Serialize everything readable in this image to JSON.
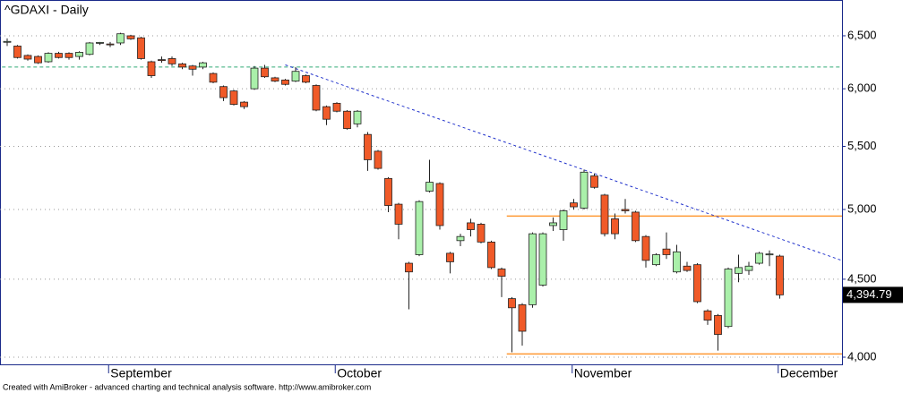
{
  "chart_data": {
    "type": "candlestick",
    "title": "^GDAXI - Daily",
    "footer": "Created with AmiBroker - advanced charting and technical analysis software. http://www.amibroker.com",
    "categories": [
      null,
      null,
      null,
      null,
      null,
      null,
      null,
      null,
      null,
      null,
      "September",
      null,
      null,
      null,
      null,
      null,
      null,
      null,
      null,
      null,
      null,
      null,
      null,
      null,
      null,
      null,
      null,
      null,
      null,
      null,
      null,
      null,
      "October",
      null,
      null,
      null,
      null,
      null,
      null,
      null,
      null,
      null,
      null,
      null,
      null,
      null,
      null,
      null,
      null,
      null,
      null,
      null,
      null,
      null,
      null,
      "November",
      null,
      null,
      null,
      null,
      null,
      null,
      null,
      null,
      null,
      null,
      null,
      null,
      null,
      null,
      null,
      null,
      null,
      null,
      null,
      "December"
    ],
    "open": [
      6440,
      6400,
      6310,
      6300,
      6250,
      6330,
      6330,
      6300,
      6320,
      6430,
      6420,
      6430,
      6500,
      6480,
      6250,
      6270,
      6280,
      6230,
      6210,
      6200,
      6140,
      6020,
      5980,
      5880,
      6000,
      6190,
      6100,
      6080,
      6070,
      6120,
      6030,
      5840,
      5870,
      5800,
      5690,
      5600,
      5460,
      5240,
      5040,
      4610,
      4670,
      5140,
      5200,
      4680,
      4770,
      4900,
      4890,
      4760,
      4570,
      4370,
      4330,
      4330,
      4460,
      4880,
      4850,
      5050,
      5010,
      5260,
      5110,
      4930,
      5000,
      4980,
      4800,
      4600,
      4710,
      4550,
      4590,
      4600,
      4290,
      4260,
      4190,
      4540,
      4560,
      4610,
      4670,
      4660
    ],
    "high": [
      6475,
      6410,
      6320,
      6310,
      6340,
      6345,
      6340,
      6350,
      6440,
      6440,
      6440,
      6530,
      6510,
      6490,
      6260,
      6300,
      6300,
      6240,
      6220,
      6250,
      6150,
      6030,
      5990,
      5890,
      6210,
      6220,
      6110,
      6090,
      6200,
      6130,
      6040,
      5850,
      5880,
      5810,
      5810,
      5620,
      5470,
      5250,
      5050,
      4620,
      5070,
      5390,
      5210,
      4690,
      4820,
      4930,
      4900,
      4770,
      4580,
      4380,
      4340,
      4830,
      4830,
      4940,
      5000,
      5080,
      5310,
      5280,
      5120,
      4970,
      5080,
      4990,
      4810,
      4680,
      4830,
      4740,
      4620,
      4610,
      4300,
      4270,
      4580,
      4670,
      4620,
      4690,
      4700,
      4670
    ],
    "low": [
      6400,
      6280,
      6260,
      6230,
      6240,
      6280,
      6270,
      6270,
      6310,
      6410,
      6390,
      6410,
      6460,
      6270,
      6100,
      6240,
      6210,
      6180,
      6120,
      6180,
      6050,
      5890,
      5850,
      5820,
      5990,
      6100,
      6060,
      6030,
      6060,
      6050,
      5800,
      5680,
      5790,
      5640,
      5660,
      5300,
      5310,
      4980,
      4780,
      4300,
      4660,
      5130,
      4850,
      4540,
      4730,
      4800,
      4750,
      4570,
      4380,
      4030,
      4070,
      4310,
      4450,
      4840,
      4770,
      5000,
      5000,
      5160,
      4800,
      4780,
      4970,
      4760,
      4580,
      4590,
      4640,
      4540,
      4550,
      4340,
      4200,
      4040,
      4180,
      4480,
      4530,
      4600,
      4590,
      4370
    ],
    "close": [
      6445,
      6290,
      6275,
      6240,
      6330,
      6290,
      6290,
      6340,
      6430,
      6435,
      6415,
      6520,
      6470,
      6280,
      6120,
      6265,
      6230,
      6200,
      6180,
      6240,
      6060,
      5920,
      5860,
      5840,
      6190,
      6110,
      6070,
      6040,
      6160,
      6060,
      5810,
      5730,
      5800,
      5650,
      5800,
      5390,
      5320,
      5030,
      4890,
      4550,
      5060,
      5210,
      4880,
      4620,
      4800,
      4850,
      4760,
      4580,
      4520,
      4310,
      4160,
      4820,
      4820,
      4900,
      4990,
      5020,
      5290,
      5170,
      4820,
      4820,
      4990,
      4770,
      4630,
      4670,
      4670,
      4690,
      4560,
      4350,
      4230,
      4140,
      4570,
      4580,
      4590,
      4680,
      4675,
      4394.79
    ],
    "last_label": "4,394.79",
    "up_color": "#aaf0aa",
    "down_color": "#f05a28",
    "ylim": [
      3957,
      6861
    ],
    "log_y": true,
    "yticks": [
      {
        "value": 4000,
        "label": "4,000"
      },
      {
        "value": 4500,
        "label": "4,500"
      },
      {
        "value": 5000,
        "label": "5,000"
      },
      {
        "value": 5500,
        "label": "5,500"
      },
      {
        "value": 6000,
        "label": "6,000"
      },
      {
        "value": 6500,
        "label": "6,500"
      }
    ],
    "grid": true,
    "reference_lines": [
      {
        "value": 6200,
        "start": 0,
        "color": "#33aa77",
        "style": "dashed"
      },
      {
        "value": 4950,
        "start": 49,
        "color": "#ff9933",
        "style": "solid"
      },
      {
        "value": 4020,
        "start": 49,
        "color": "#ff9933",
        "style": "solid"
      }
    ],
    "trendline": {
      "points": [
        [
          27,
          6220
        ],
        [
          81,
          4630
        ]
      ],
      "color": "#2233cc",
      "style": "dashed"
    }
  }
}
